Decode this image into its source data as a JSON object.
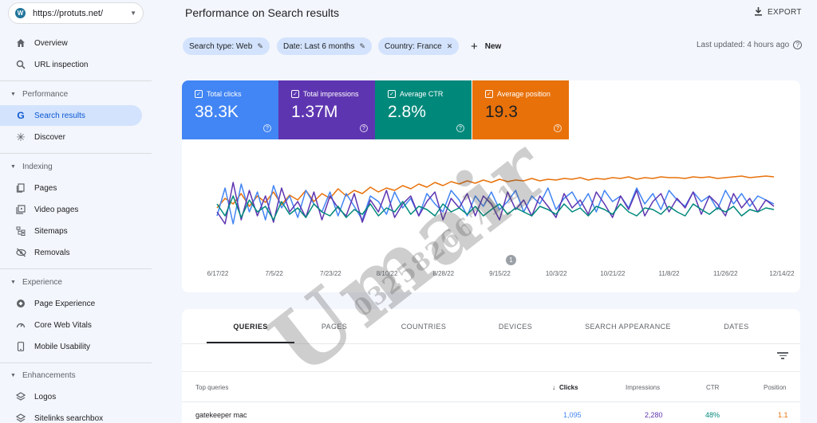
{
  "sidebar": {
    "property": "https://protuts.net/",
    "overview": "Overview",
    "url_inspection": "URL inspection",
    "performance_section": "Performance",
    "search_results": "Search results",
    "discover": "Discover",
    "indexing_section": "Indexing",
    "pages": "Pages",
    "video_pages": "Video pages",
    "sitemaps": "Sitemaps",
    "removals": "Removals",
    "experience_section": "Experience",
    "page_experience": "Page Experience",
    "core_web_vitals": "Core Web Vitals",
    "mobile_usability": "Mobile Usability",
    "enhancements_section": "Enhancements",
    "logos": "Logos",
    "sitelinks_searchbox": "Sitelinks searchbox"
  },
  "header": {
    "title": "Performance on Search results",
    "export_label": "EXPORT"
  },
  "filters": {
    "search_type": "Search type: Web",
    "date": "Date: Last 6 months",
    "country": "Country: France",
    "new_label": "New",
    "last_updated": "Last updated: 4 hours ago"
  },
  "metrics": {
    "clicks": {
      "label": "Total clicks",
      "value": "38.3K",
      "color": "#4285f4"
    },
    "impressions": {
      "label": "Total impressions",
      "value": "1.37M",
      "color": "#5e35b1"
    },
    "ctr": {
      "label": "Average CTR",
      "value": "2.8%",
      "color": "#00897b"
    },
    "position": {
      "label": "Average position",
      "value": "19.3",
      "color": "#e8710a"
    }
  },
  "chart_data": {
    "type": "line",
    "x_tick_labels": [
      "6/17/22",
      "7/5/22",
      "7/23/22",
      "8/10/22",
      "8/28/22",
      "9/15/22",
      "10/3/22",
      "10/21/22",
      "11/8/22",
      "11/26/22",
      "12/14/22"
    ],
    "annotation_marker": "1",
    "series": [
      {
        "color": "#e8710a",
        "values": [
          40,
          52,
          45,
          58,
          42,
          55,
          47,
          60,
          44,
          56,
          50,
          62,
          48,
          58,
          52,
          64,
          55,
          62,
          58,
          66,
          60,
          65,
          62,
          68,
          64,
          70,
          66,
          72,
          68,
          73,
          70,
          74,
          71,
          75,
          72,
          76,
          73,
          75,
          74,
          77,
          74,
          76,
          75,
          77,
          76,
          78,
          75,
          77,
          76,
          78,
          77,
          79,
          76,
          78,
          77,
          79,
          78,
          78,
          77,
          79,
          78,
          79,
          77,
          78,
          79,
          80,
          78,
          79,
          80,
          79
        ]
      },
      {
        "color": "#4285f4",
        "values": [
          30,
          65,
          20,
          70,
          35,
          60,
          25,
          68,
          40,
          55,
          28,
          62,
          45,
          35,
          60,
          30,
          58,
          42,
          25,
          55,
          48,
          32,
          60,
          40,
          52,
          30,
          58,
          45,
          35,
          62,
          50,
          30,
          55,
          42,
          60,
          38,
          48,
          62,
          35,
          55,
          45,
          65,
          38,
          52,
          60,
          42,
          58,
          35,
          62,
          48,
          55,
          40,
          65,
          45,
          58,
          38,
          62,
          50,
          42,
          60,
          48,
          55,
          38,
          62,
          45,
          58,
          42,
          55,
          50,
          45
        ]
      },
      {
        "color": "#5e35b1",
        "values": [
          35,
          20,
          72,
          25,
          62,
          30,
          55,
          22,
          65,
          35,
          48,
          28,
          60,
          25,
          55,
          40,
          30,
          58,
          22,
          50,
          35,
          62,
          28,
          45,
          55,
          30,
          48,
          60,
          25,
          52,
          40,
          58,
          30,
          55,
          45,
          25,
          60,
          38,
          50,
          30,
          55,
          42,
          28,
          58,
          40,
          50,
          32,
          60,
          45,
          28,
          55,
          38,
          62,
          30,
          48,
          58,
          35,
          52,
          40,
          60,
          32,
          55,
          45,
          30,
          58,
          40,
          52,
          35,
          50,
          42
        ]
      },
      {
        "color": "#00897b",
        "values": [
          45,
          30,
          55,
          28,
          50,
          35,
          42,
          25,
          48,
          32,
          40,
          28,
          45,
          35,
          30,
          42,
          28,
          38,
          32,
          45,
          30,
          40,
          35,
          48,
          32,
          42,
          38,
          30,
          45,
          35,
          40,
          32,
          42,
          30,
          38,
          45,
          32,
          40,
          35,
          30,
          42,
          38,
          32,
          45,
          35,
          40,
          30,
          42,
          38,
          32,
          45,
          35,
          30,
          40,
          38,
          32,
          42,
          35,
          30,
          45,
          38,
          32,
          40,
          35,
          42,
          30,
          38,
          35,
          40,
          38
        ]
      }
    ]
  },
  "table": {
    "tabs": [
      "QUERIES",
      "PAGES",
      "COUNTRIES",
      "DEVICES",
      "SEARCH APPEARANCE",
      "DATES"
    ],
    "headers": {
      "query": "Top queries",
      "clicks": "Clicks",
      "impressions": "Impressions",
      "ctr": "CTR",
      "position": "Position"
    },
    "rows": [
      {
        "query": "gatekeeper mac",
        "clicks": "1,095",
        "impressions": "2,280",
        "ctr": "48%",
        "position": "1.1"
      }
    ]
  },
  "watermark": {
    "text": "Umair",
    "number": "03258266711"
  }
}
